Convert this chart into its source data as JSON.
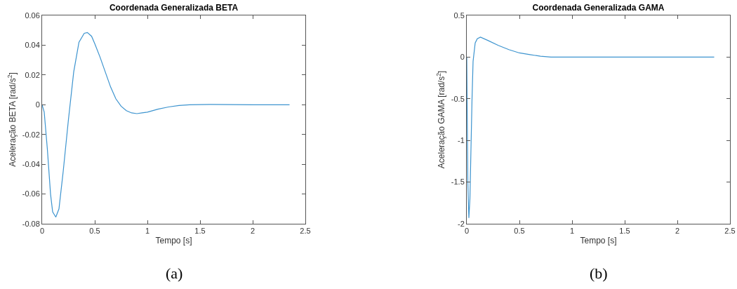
{
  "chart_data": [
    {
      "type": "line",
      "title": "Coordenada Generalizada BETA",
      "xlabel": "Tempo [s]",
      "ylabel": "Aceleração BETA [rad/s$^{2}$]",
      "annotations": [
        "(a)"
      ],
      "x": [
        0,
        0.02,
        0.05,
        0.08,
        0.1,
        0.13,
        0.16,
        0.2,
        0.25,
        0.3,
        0.35,
        0.4,
        0.43,
        0.47,
        0.5,
        0.55,
        0.6,
        0.65,
        0.7,
        0.75,
        0.8,
        0.85,
        0.9,
        0.95,
        1.0,
        1.1,
        1.2,
        1.3,
        1.4,
        1.6,
        2.0,
        2.35
      ],
      "series": [
        {
          "color": "#3d94cf",
          "values": [
            0,
            -0.005,
            -0.03,
            -0.06,
            -0.072,
            -0.0755,
            -0.07,
            -0.045,
            -0.01,
            0.022,
            0.042,
            0.048,
            0.0485,
            0.046,
            0.041,
            0.032,
            0.022,
            0.012,
            0.004,
            -0.001,
            -0.004,
            -0.0055,
            -0.006,
            -0.0055,
            -0.005,
            -0.003,
            -0.0015,
            -0.0005,
            0,
            0.0002,
            0,
            0
          ]
        }
      ],
      "xlim": [
        0,
        2.5
      ],
      "xticks": [
        0,
        0.5,
        1,
        1.5,
        2,
        2.5
      ],
      "ylim": [
        -0.08,
        0.06
      ],
      "yticks": [
        -0.08,
        -0.06,
        -0.04,
        -0.02,
        0,
        0.02,
        0.04,
        0.06
      ],
      "grid": false,
      "marker": "none",
      "line_style": "solid"
    },
    {
      "type": "line",
      "title": "Coordenada Generalizada GAMA",
      "xlabel": "Tempo [s]",
      "ylabel": "Aceleração GAMA [rad/s$^{2}$]",
      "annotations": [
        "(b)"
      ],
      "x": [
        0,
        0.005,
        0.01,
        0.02,
        0.03,
        0.04,
        0.05,
        0.06,
        0.08,
        0.1,
        0.13,
        0.2,
        0.3,
        0.4,
        0.5,
        0.6,
        0.7,
        0.8,
        1.0,
        1.5,
        2.0,
        2.35
      ],
      "series": [
        {
          "color": "#3d94cf",
          "values": [
            0,
            -0.8,
            -1.5,
            -1.93,
            -1.7,
            -1.1,
            -0.5,
            -0.05,
            0.17,
            0.22,
            0.24,
            0.2,
            0.14,
            0.09,
            0.05,
            0.03,
            0.01,
            0,
            0,
            0,
            0,
            0
          ]
        }
      ],
      "xlim": [
        0,
        2.5
      ],
      "xticks": [
        0,
        0.5,
        1,
        1.5,
        2,
        2.5
      ],
      "ylim": [
        -2,
        0.5
      ],
      "yticks": [
        -2,
        -1.5,
        -1,
        -0.5,
        0,
        0.5
      ],
      "grid": false,
      "marker": "none",
      "line_style": "solid"
    }
  ]
}
